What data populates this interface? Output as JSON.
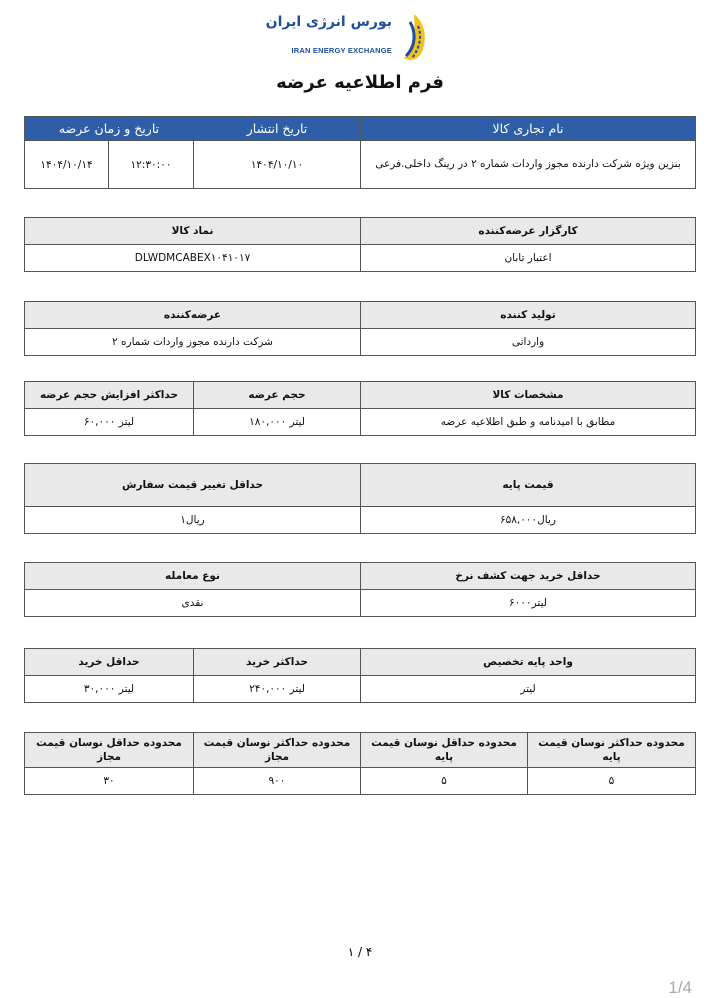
{
  "logo": {
    "fa": "بورس انرژی ایران",
    "en": "IRAN ENERGY EXCHANGE"
  },
  "title": "فرم اطلاعیه عرضه",
  "tables": [
    {
      "style": "blue",
      "headers": [
        {
          "t": "نام تجاری کالا",
          "span": 1
        },
        {
          "t": "تاریخ انتشار",
          "span": 1
        },
        {
          "t": "تاریخ و زمان عرضه",
          "span": 2
        }
      ],
      "cols": [
        335,
        167,
        85,
        84
      ],
      "values": [
        "بنزین ویژه شرکت دارنده مجوز واردات شماره ۲ در رینگ داخلی.فرعی",
        "۱۴۰۴/۱۰/۱۰",
        "۱۲:۳۰:۰۰",
        "۱۴۰۴/۱۰/۱۴"
      ]
    },
    {
      "headers": [
        {
          "t": "کارگزار عرضه‌کننده"
        },
        {
          "t": "نماد کالا"
        }
      ],
      "cols": [
        335,
        336
      ],
      "values": [
        "اعتبار تابان",
        "DLWDMCABEX۱۰۴۱۰۱۷"
      ]
    },
    {
      "headers": [
        {
          "t": "تولید کننده"
        },
        {
          "t": "عرضه‌کننده"
        }
      ],
      "cols": [
        335,
        336
      ],
      "values": [
        "وارداتی",
        "شرکت دارنده مجوز واردات شماره ۲"
      ]
    },
    {
      "headers": [
        {
          "t": "مشخصات کالا"
        },
        {
          "t": "حجم عرضه"
        },
        {
          "t": "حداکثر افزایش حجم عرضه"
        }
      ],
      "cols": [
        335,
        167,
        169
      ],
      "values": [
        "مطابق با امیدنامه و طبق اطلاعیه عرضه",
        "لیتر ۱۸۰,۰۰۰",
        "لیتر ۶۰,۰۰۰"
      ]
    },
    {
      "tall": true,
      "headers": [
        {
          "t": "قیمت پایه"
        },
        {
          "t": "حداقل تغییر قیمت سفارش"
        }
      ],
      "cols": [
        335,
        336
      ],
      "values": [
        "ریال۶۵۸,۰۰۰",
        "ریال۱"
      ]
    },
    {
      "headers": [
        {
          "t": "حداقل خرید جهت کشف نرخ"
        },
        {
          "t": "نوع معامله"
        }
      ],
      "cols": [
        335,
        336
      ],
      "values": [
        "لیتر۶۰۰۰",
        "نقدی"
      ]
    },
    {
      "headers": [
        {
          "t": "واحد پایه تخصیص"
        },
        {
          "t": "حداکثر خرید"
        },
        {
          "t": "حداقل خرید"
        }
      ],
      "cols": [
        335,
        167,
        169
      ],
      "values": [
        "لیتر",
        "لیتر ۲۴۰,۰۰۰",
        "لیتر ۳۰,۰۰۰"
      ]
    },
    {
      "headers": [
        {
          "t": "محدوده حداکثر نوسان قیمت پایه"
        },
        {
          "t": "محدوده حداقل نوسان قیمت پایه"
        },
        {
          "t": "محدوده حداکثر نوسان قیمت مجاز"
        },
        {
          "t": "محدوده حداقل نوسان قیمت مجاز"
        }
      ],
      "cols": [
        168,
        167,
        167,
        169
      ],
      "values": [
        "۵",
        "۵",
        "۹۰۰",
        "۳۰"
      ]
    }
  ],
  "footer": {
    "page_number": "۴ / ۱",
    "viewer_page": "1/4"
  },
  "colors": {
    "header_blue": "#2f5ea8",
    "header_gray": "#e9e9e9"
  }
}
